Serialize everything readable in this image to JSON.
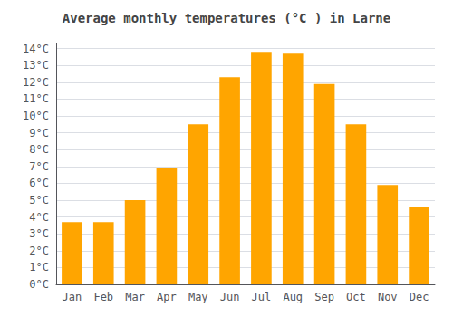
{
  "chart_data": {
    "type": "bar",
    "title": "Average monthly temperatures (°C ) in Larne",
    "categories": [
      "Jan",
      "Feb",
      "Mar",
      "Apr",
      "May",
      "Jun",
      "Jul",
      "Aug",
      "Sep",
      "Oct",
      "Nov",
      "Dec"
    ],
    "values": [
      3.7,
      3.7,
      5.0,
      6.9,
      9.5,
      12.3,
      13.8,
      13.7,
      11.9,
      9.5,
      5.9,
      4.6
    ],
    "color": "#FFA500",
    "ylim": [
      0,
      14.3
    ],
    "yticks": [
      {
        "value": 0,
        "label": "0°C"
      },
      {
        "value": 1,
        "label": "1°C"
      },
      {
        "value": 2,
        "label": "2°C"
      },
      {
        "value": 3,
        "label": "3°C"
      },
      {
        "value": 4,
        "label": "4°C"
      },
      {
        "value": 5,
        "label": "5°C"
      },
      {
        "value": 6,
        "label": "6°C"
      },
      {
        "value": 7,
        "label": "7°C"
      },
      {
        "value": 8,
        "label": "8°C"
      },
      {
        "value": 9,
        "label": "9°C"
      },
      {
        "value": 10,
        "label": "10°C"
      },
      {
        "value": 11,
        "label": "11°C"
      },
      {
        "value": 12,
        "label": "12°C"
      },
      {
        "value": 13,
        "label": "13°C"
      },
      {
        "value": 14,
        "label": "14°C"
      }
    ],
    "grid": true
  }
}
